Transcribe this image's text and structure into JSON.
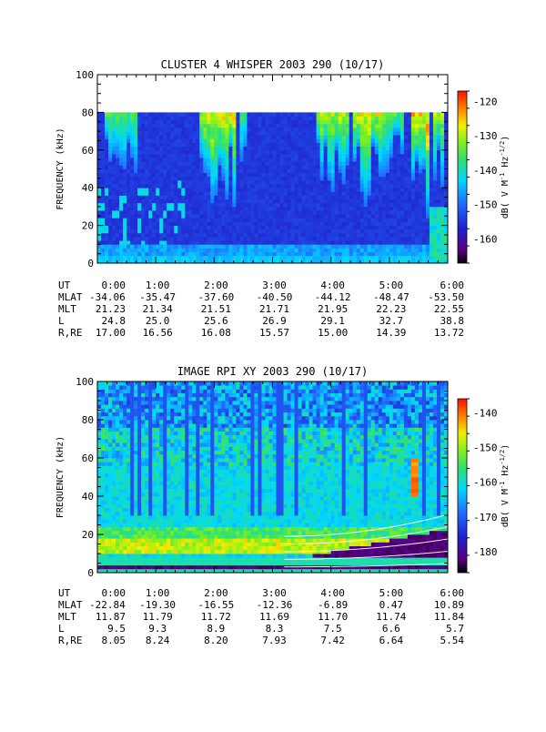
{
  "chart_data": [
    {
      "type": "heatmap",
      "title": "CLUSTER 4 WHISPER 2003 290 (10/17)",
      "ylabel": "FREQUENCY (kHz)",
      "ylim": [
        0,
        100
      ],
      "yticks": [
        "0",
        "20",
        "40",
        "60",
        "80",
        "100"
      ],
      "xlim_hours": [
        0,
        6
      ],
      "data_fmax_khz": 80,
      "colorbar": {
        "label_parts": [
          "dB( V M",
          "-1",
          " Hz",
          "-1/2",
          ")"
        ],
        "range": [
          -167,
          -117
        ],
        "ticks": [
          "-120",
          "-130",
          "-140",
          "-150",
          "-160"
        ],
        "tick_values": [
          -120,
          -130,
          -140,
          -150,
          -160
        ]
      },
      "ephemeris": {
        "labels": [
          "UT",
          "MLAT",
          "MLT",
          "L",
          "R,RE"
        ],
        "UT": [
          "0:00",
          "1:00",
          "2:00",
          "3:00",
          "4:00",
          "5:00",
          "6:00"
        ],
        "MLAT": [
          "-34.06",
          "-35.47",
          "-37.60",
          "-40.50",
          "-44.12",
          "-48.47",
          "-53.50"
        ],
        "MLT": [
          "21.23",
          "21.34",
          "21.51",
          "21.71",
          "21.95",
          "22.23",
          "22.55"
        ],
        "L": [
          "24.8",
          "25.0",
          "25.6",
          "26.9",
          "29.1",
          "32.7",
          "38.8"
        ],
        "R,RE": [
          "17.00",
          "16.56",
          "16.08",
          "15.57",
          "15.00",
          "14.39",
          "13.72"
        ]
      }
    },
    {
      "type": "heatmap",
      "title": "IMAGE RPI XY 2003 290 (10/17)",
      "ylabel": "FREQUENCY (kHz)",
      "ylim": [
        0,
        100
      ],
      "yticks": [
        "0",
        "20",
        "40",
        "60",
        "80",
        "100"
      ],
      "xlim_hours": [
        0,
        6
      ],
      "colorbar": {
        "label_parts": [
          "dB( V M",
          "-1",
          " Hz",
          "-1/2",
          ")"
        ],
        "range": [
          -186,
          -136
        ],
        "ticks": [
          "-140",
          "-150",
          "-160",
          "-170",
          "-180"
        ],
        "tick_values": [
          -140,
          -150,
          -160,
          -170,
          -180
        ]
      },
      "ephemeris": {
        "labels": [
          "UT",
          "MLAT",
          "MLT",
          "L",
          "R,RE"
        ],
        "UT": [
          "0:00",
          "1:00",
          "2:00",
          "3:00",
          "4:00",
          "5:00",
          "6:00"
        ],
        "MLAT": [
          "-22.84",
          "-19.30",
          "-16.55",
          "-12.36",
          "-6.89",
          "0.47",
          "10.89"
        ],
        "MLT": [
          "11.87",
          "11.79",
          "11.72",
          "11.69",
          "11.70",
          "11.74",
          "11.84"
        ],
        "L": [
          "9.5",
          "9.3",
          "8.9",
          "8.3",
          "7.5",
          "6.6",
          "5.7"
        ],
        "R,RE": [
          "8.05",
          "8.24",
          "8.20",
          "7.93",
          "7.42",
          "6.64",
          "5.54"
        ]
      }
    }
  ]
}
